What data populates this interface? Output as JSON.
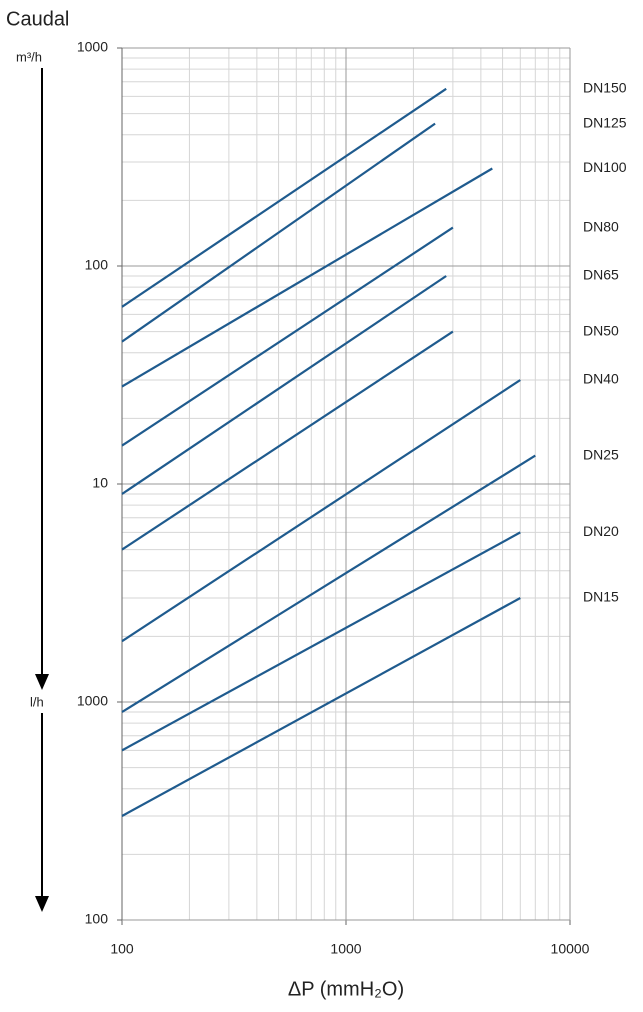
{
  "chart_data": {
    "type": "line",
    "title": "Caudal",
    "y_unit_top": "m³/h",
    "y_unit_bottom": "l/h",
    "xlabel": "ΔP (mmH₂O)",
    "xscale": "log",
    "yscale": "log",
    "grid": true,
    "xlim": [
      100,
      10000
    ],
    "xticks": [
      100,
      1000,
      10000
    ],
    "ylim": [
      0.1,
      1000
    ],
    "yticks": [
      {
        "value": 0.1,
        "label": "100"
      },
      {
        "value": 1,
        "label": "1000"
      },
      10,
      100,
      1000
    ],
    "series": [
      {
        "name": "DN150",
        "color": "#1f5b8e",
        "x": [
          100,
          2800
        ],
        "values": [
          65,
          650
        ]
      },
      {
        "name": "DN125",
        "color": "#1f5b8e",
        "x": [
          100,
          2500
        ],
        "values": [
          45,
          450
        ]
      },
      {
        "name": "DN100",
        "color": "#1f5b8e",
        "x": [
          100,
          4500
        ],
        "values": [
          28,
          280
        ]
      },
      {
        "name": "DN80",
        "color": "#1f5b8e",
        "x": [
          100,
          3000
        ],
        "values": [
          15,
          150
        ]
      },
      {
        "name": "DN65",
        "color": "#1f5b8e",
        "x": [
          100,
          2800
        ],
        "values": [
          9,
          90
        ]
      },
      {
        "name": "DN50",
        "color": "#1f5b8e",
        "x": [
          100,
          3000
        ],
        "values": [
          5,
          50
        ]
      },
      {
        "name": "DN40",
        "color": "#1f5b8e",
        "x": [
          100,
          6000
        ],
        "values": [
          1.9,
          30
        ]
      },
      {
        "name": "DN25",
        "color": "#1f5b8e",
        "x": [
          100,
          7000
        ],
        "values": [
          0.9,
          13.5
        ]
      },
      {
        "name": "DN20",
        "color": "#1f5b8e",
        "x": [
          100,
          6000
        ],
        "values": [
          0.6,
          6
        ]
      },
      {
        "name": "DN15",
        "color": "#1f5b8e",
        "x": [
          100,
          6000
        ],
        "values": [
          0.3,
          3
        ]
      }
    ]
  }
}
